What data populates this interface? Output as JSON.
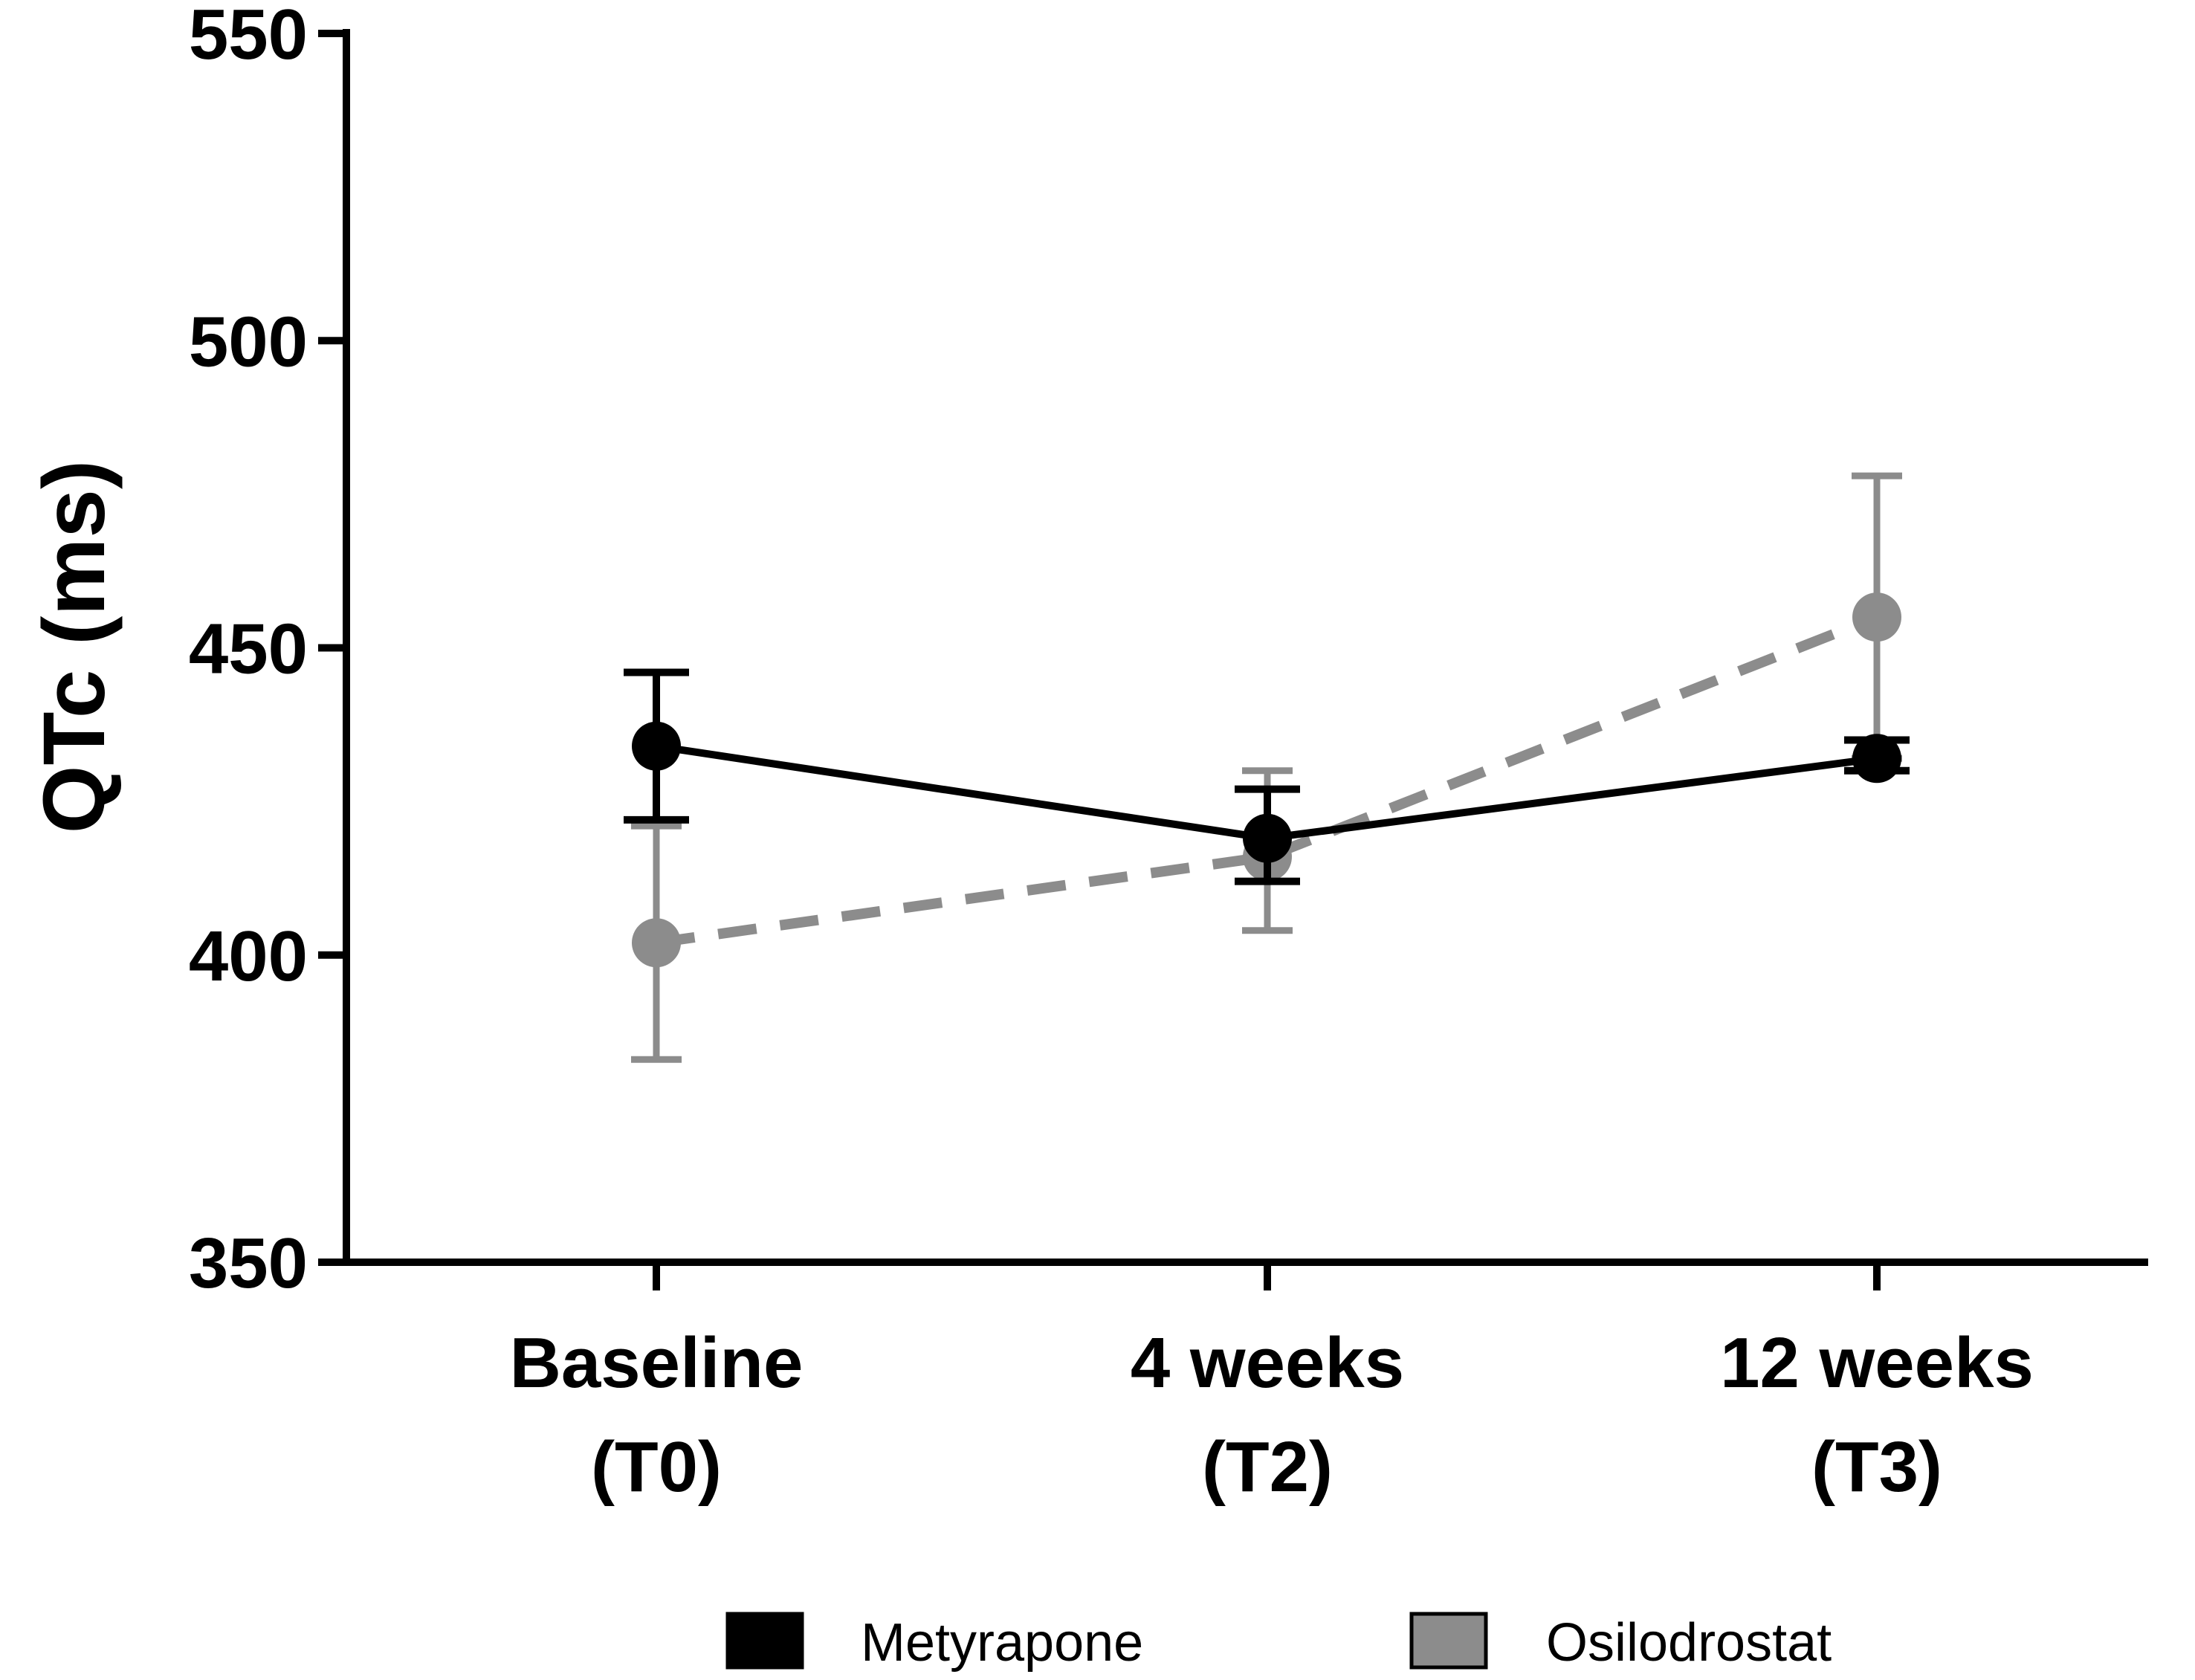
{
  "chart_data": {
    "type": "line",
    "title": "",
    "xlabel": "",
    "ylabel": "QTc (ms)",
    "ylim": [
      350,
      550
    ],
    "yticks": [
      350,
      400,
      450,
      500,
      550
    ],
    "categories": [
      [
        "Baseline",
        "(T0)"
      ],
      [
        "4 weeks",
        "(T2)"
      ],
      [
        "12 weeks",
        "(T3)"
      ]
    ],
    "series": [
      {
        "name": "Metyrapone",
        "color": "#000000",
        "line_style": "solid",
        "values": [
          434,
          419,
          432
        ],
        "error_low": [
          422,
          412,
          430
        ],
        "error_high": [
          446,
          427,
          435
        ]
      },
      {
        "name": "Osilodrostat",
        "color": "#8c8c8c",
        "line_style": "dashed",
        "values": [
          402,
          416,
          455
        ],
        "error_low": [
          383,
          404,
          432
        ],
        "error_high": [
          421,
          430,
          478
        ]
      }
    ],
    "legend_position": "bottom-center",
    "grid": false
  }
}
